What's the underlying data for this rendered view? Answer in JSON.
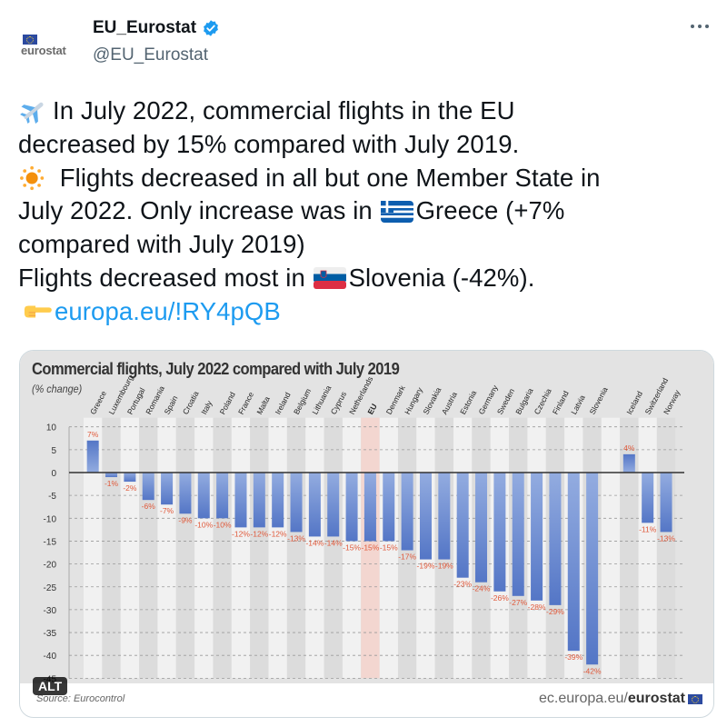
{
  "tweet": {
    "author": {
      "display_name": "EU_Eurostat",
      "handle": "@EU_Eurostat",
      "avatar_text": "eurostat",
      "verified": true
    },
    "more_icon": "ellipsis-icon",
    "lines": [
      {
        "emoji": "airplane",
        "text": "In July 2022, commercial flights in the EU"
      },
      {
        "text": "decreased by 15% compared with July 2019."
      },
      {
        "emoji": "sun",
        "text": " Flights decreased in all but one Member State in"
      },
      {
        "text_before": "July 2022. Only increase was in ",
        "emoji": "flag-greece",
        "text": "Greece (+7%"
      },
      {
        "text": "compared with July 2019)"
      },
      {
        "text_before": "Flights decreased most in ",
        "emoji": "flag-slovenia",
        "text": "Slovenia (-42%)."
      },
      {
        "emoji": "pointing-hand",
        "link": "europa.eu/!RY4pQB"
      }
    ],
    "media": {
      "alt_badge": "ALT",
      "source": "Source: Eurocontrol",
      "footer_url_prefix": "ec.europa.eu/",
      "footer_url_bold": "eurostat"
    }
  },
  "colors": {
    "bar": "#5b7fc9",
    "bar_light": "#93ace0",
    "label": "#e0593a",
    "eu_highlight": "#f3d6d0",
    "link": "#1d9bf0",
    "verified": "#1d9bf0"
  },
  "chart_data": {
    "type": "bar",
    "title": "Commercial flights, July 2022 compared with July 2019",
    "subtitle": "(% change)",
    "xlabel": "",
    "ylabel": "% change",
    "ylim": [
      -45,
      10
    ],
    "yticks": [
      10,
      5,
      0,
      -5,
      -10,
      -15,
      -20,
      -25,
      -30,
      -35,
      -40,
      -45
    ],
    "grid": true,
    "legend": null,
    "categories": [
      "Greece",
      "Luxembourg",
      "Portugal",
      "Romania",
      "Spain",
      "Croatia",
      "Italy",
      "Poland",
      "France",
      "Malta",
      "Ireland",
      "Belgium",
      "Lithuania",
      "Cyprus",
      "Netherlands",
      "EU",
      "Denmark",
      "Hungary",
      "Slovakia",
      "Austria",
      "Estonia",
      "Germany",
      "Sweden",
      "Bulgaria",
      "Czechia",
      "Finland",
      "Latvia",
      "Slovenia",
      "Iceland",
      "Switzerland",
      "Norway"
    ],
    "values": [
      7,
      -1,
      -2,
      -6,
      -7,
      -9,
      -10,
      -10,
      -12,
      -12,
      -12,
      -13,
      -14,
      -14,
      -15,
      -15,
      -15,
      -17,
      -19,
      -19,
      -23,
      -24,
      -26,
      -27,
      -28,
      -29,
      -39,
      -42,
      4,
      -11,
      -13
    ],
    "labels": [
      "7%",
      "-1%",
      "-2%",
      "-6%",
      "-7%",
      "-9%",
      "-10%",
      "-10%",
      "-12%",
      "-12%",
      "-12%",
      "-13%",
      "-14%",
      "-14%",
      "-15%",
      "-15%",
      "-15%",
      "-17%",
      "-19%",
      "-19%",
      "-23%",
      "-24%",
      "-26%",
      "-27%",
      "-28%",
      "-29%",
      "-39%",
      "-42%",
      "4%",
      "-11%",
      "-13%"
    ],
    "highlight": "EU",
    "source": "Source: Eurocontrol"
  }
}
